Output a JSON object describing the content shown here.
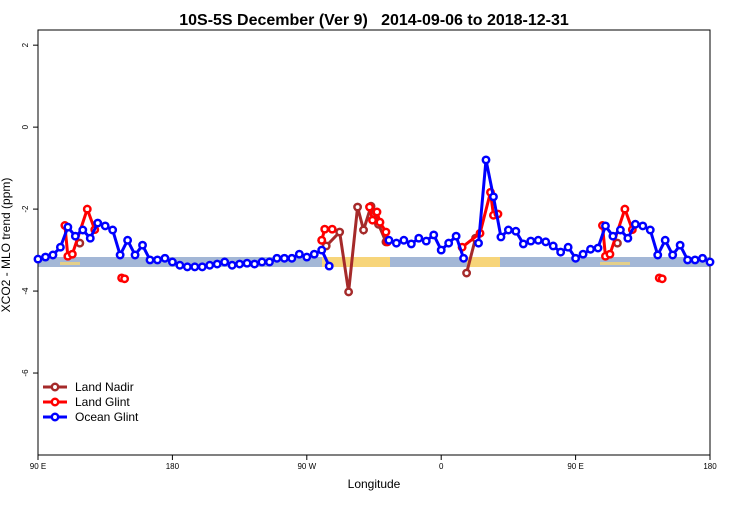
{
  "chart_data": {
    "type": "line",
    "title": "10S-5S December (Ver 9)   2014-09-06 to 2018-12-31",
    "xlabel": "Longitude",
    "ylabel": "XCO2 - MLO trend (ppm)",
    "xlim": [
      90,
      540
    ],
    "ylim": [
      -8.0,
      2.37
    ],
    "xticks": [
      {
        "value": 90,
        "label": "90 E"
      },
      180,
      {
        "value": 270,
        "label": "90 W"
      },
      {
        "value": 360,
        "label": "0"
      },
      {
        "value": 450,
        "label": "90 E"
      },
      {
        "value": 540,
        "label": "180"
      }
    ],
    "yticks": [
      2,
      0,
      -2,
      -4,
      -6
    ],
    "grid": false,
    "legend": "bottom-left",
    "series": [
      {
        "name": "Land Nadir",
        "color": "#a52a2a",
        "x": [
          118,
          null,
          280,
          283,
          292,
          298,
          304,
          308,
          313,
          318,
          323,
          null,
          377,
          383,
          null,
          478
        ],
        "values": [
          -2.83,
          null,
          -2.76,
          -2.9,
          -2.56,
          -4.02,
          -1.95,
          -2.51,
          -1.93,
          -2.37,
          -2.8,
          null,
          -3.56,
          -2.71,
          null,
          -2.83
        ]
      },
      {
        "name": "Land Glint",
        "color": "#ff0000",
        "x": [
          108,
          110,
          113,
          123,
          128,
          null,
          146,
          148,
          null,
          280,
          282,
          287,
          null,
          312,
          314,
          317,
          319,
          323,
          324,
          null,
          374,
          386,
          393,
          395,
          398,
          null,
          468,
          470,
          473,
          483,
          488,
          null,
          506,
          508
        ],
        "values": [
          -2.4,
          -3.15,
          -3.1,
          -2.0,
          -2.5,
          null,
          -3.68,
          -3.7,
          null,
          -2.76,
          -2.49,
          -2.49,
          null,
          -1.95,
          -2.27,
          -2.07,
          -2.32,
          -2.56,
          -2.8,
          null,
          -2.93,
          -2.59,
          -1.59,
          -2.15,
          -2.12,
          null,
          -2.4,
          -3.15,
          -3.1,
          -2.0,
          -2.5,
          null,
          -3.68,
          -3.7
        ]
      },
      {
        "name": "Ocean Glint",
        "color": "#0000ff",
        "x": [
          90,
          95,
          100,
          105,
          110,
          115,
          120,
          125,
          130,
          135,
          140,
          145,
          150,
          155,
          160,
          165,
          170,
          175,
          180,
          185,
          190,
          195,
          200,
          205,
          210,
          215,
          220,
          225,
          230,
          235,
          240,
          245,
          250,
          255,
          260,
          265,
          270,
          275,
          280,
          285,
          null,
          325,
          330,
          335,
          340,
          345,
          350,
          355,
          360,
          365,
          370,
          375,
          null,
          385,
          390,
          395,
          400,
          405,
          410,
          415,
          420,
          425,
          430,
          435,
          440,
          445,
          450,
          455,
          460,
          465,
          470,
          475,
          480,
          485,
          490,
          495,
          500,
          505,
          510,
          515,
          520,
          525,
          530,
          535,
          540
        ],
        "values": [
          -3.22,
          -3.17,
          -3.12,
          -2.93,
          -2.44,
          -2.66,
          -2.51,
          -2.71,
          -2.34,
          -2.41,
          -2.51,
          -3.12,
          -2.76,
          -3.12,
          -2.88,
          -3.24,
          -3.24,
          -3.2,
          -3.29,
          -3.37,
          -3.41,
          -3.41,
          -3.41,
          -3.37,
          -3.34,
          -3.29,
          -3.37,
          -3.34,
          -3.32,
          -3.34,
          -3.29,
          -3.29,
          -3.2,
          -3.2,
          -3.2,
          -3.1,
          -3.17,
          -3.1,
          -3.0,
          -3.39,
          null,
          -2.76,
          -2.83,
          -2.76,
          -2.85,
          -2.71,
          -2.78,
          -2.63,
          -3.0,
          -2.83,
          -2.66,
          -3.2,
          null,
          -2.83,
          -0.8,
          -1.7,
          -2.68,
          -2.51,
          -2.54,
          -2.85,
          -2.78,
          -2.76,
          -2.8,
          -2.9,
          -3.05,
          -2.93,
          -3.2,
          -3.1,
          -2.98,
          -2.95,
          -2.41,
          -2.66,
          -2.51,
          -2.71,
          -2.37,
          -2.41,
          -2.51,
          -3.12,
          -2.76,
          -3.12,
          -2.88,
          -3.24,
          -3.24,
          -3.2,
          -3.29
        ]
      }
    ]
  }
}
